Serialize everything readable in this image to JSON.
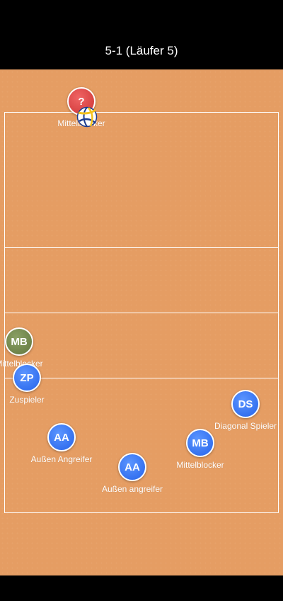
{
  "header": {
    "title": "5-1 (Läufer 5)"
  },
  "opponent": {
    "badge": "?",
    "label": "Mittelblocker"
  },
  "players": {
    "mb_left": {
      "badge": "MB",
      "label": "Mittelblocker"
    },
    "zp": {
      "badge": "ZP",
      "label": "Zuspieler"
    },
    "ds": {
      "badge": "DS",
      "label": "Diagonal Spieler"
    },
    "aa_left": {
      "badge": "AA",
      "label": "Außen Angreifer"
    },
    "mb_right": {
      "badge": "MB",
      "label": "Mittelblocker"
    },
    "aa_bottom": {
      "badge": "AA",
      "label": "Außen angreifer"
    }
  },
  "colors": {
    "court": "#e59d63",
    "team": "#2563ea",
    "middle_blocker_left": "#62773f",
    "opponent": "#cc3434"
  },
  "icons": {
    "ball": "volleyball-icon"
  }
}
